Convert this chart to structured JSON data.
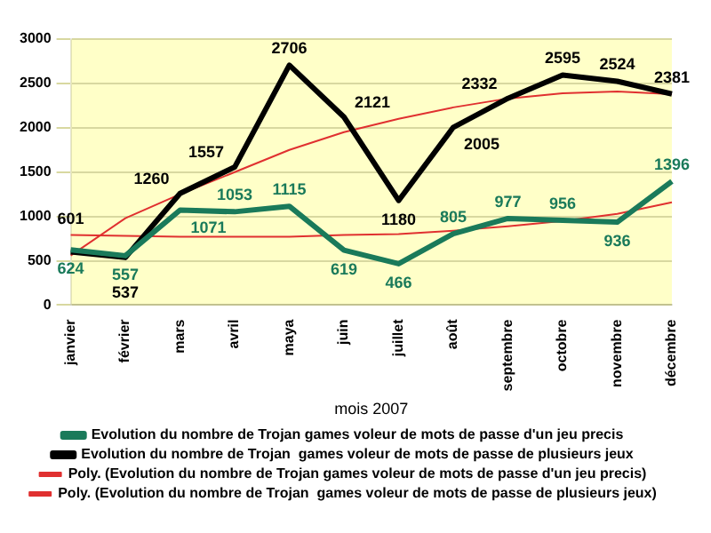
{
  "chart_data": {
    "type": "line",
    "xlabel": "mois 2007",
    "categories": [
      "janvier",
      "février",
      "mars",
      "avril",
      "maya",
      "juin",
      "juillet",
      "août",
      "septembre",
      "octobre",
      "novembre",
      "décembre"
    ],
    "series": [
      {
        "name": "Evolution du nombre de Trojan games voleur de mots de passe d'un jeu precis",
        "color": "#1a7a5a",
        "values": [
          624,
          557,
          1071,
          1053,
          1115,
          619,
          466,
          805,
          977,
          956,
          936,
          1396
        ],
        "value_labels": [
          "624",
          "557",
          "1071",
          "1053",
          "1115",
          "619",
          "466",
          "805",
          "977",
          "956",
          "936",
          "1396"
        ]
      },
      {
        "name": "Evolution du nombre de Trojan  games voleur de mots de passe de plusieurs jeux",
        "color": "#000000",
        "values": [
          601,
          537,
          1260,
          1557,
          2706,
          2121,
          1180,
          2005,
          2332,
          2595,
          2524,
          2381
        ],
        "value_labels": [
          "601",
          "537",
          "1260",
          "1557",
          "2706",
          "2121",
          "1180",
          "2005",
          "2332",
          "2595",
          "2524",
          "2381"
        ]
      },
      {
        "name": "Poly. (Evolution du nombre de Trojan games voleur de mots de passe d'un jeu precis)",
        "color": "#e03030",
        "values": [
          790,
          780,
          770,
          770,
          770,
          790,
          800,
          840,
          890,
          950,
          1030,
          1160
        ]
      },
      {
        "name": "Poly. (Evolution du nombre de Trojan  games voleur de mots de passe de plusieurs jeux)",
        "color": "#e03030",
        "values": [
          560,
          980,
          1250,
          1500,
          1750,
          1950,
          2100,
          2230,
          2330,
          2390,
          2410,
          2380
        ]
      }
    ],
    "ylim": [
      0,
      3000
    ],
    "yticks": [
      0,
      500,
      1000,
      1500,
      2000,
      2500,
      3000
    ],
    "grid": "y",
    "legend": "bottom",
    "marker": "none",
    "line_style": "solid"
  }
}
